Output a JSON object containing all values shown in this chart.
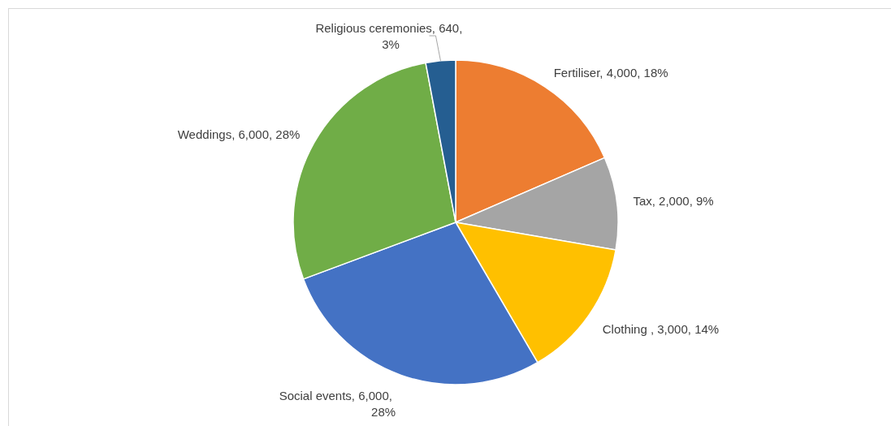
{
  "chart_data": {
    "type": "pie",
    "categories": [
      "Fertiliser",
      "Tax",
      "Clothing ",
      "Social events",
      "Weddings",
      "Religious ceremonies"
    ],
    "values": [
      4000,
      2000,
      3000,
      6000,
      6000,
      640
    ],
    "value_labels": [
      "4,000, 18%",
      "2,000, 9%",
      "3,000, 14%",
      "6,000, 28%",
      "6,000, 28%",
      "640, 3%"
    ],
    "colors": [
      "#ed7d31",
      "#a5a5a5",
      "#ffc000",
      "#4472c4",
      "#70ad47",
      "#255e91"
    ]
  }
}
